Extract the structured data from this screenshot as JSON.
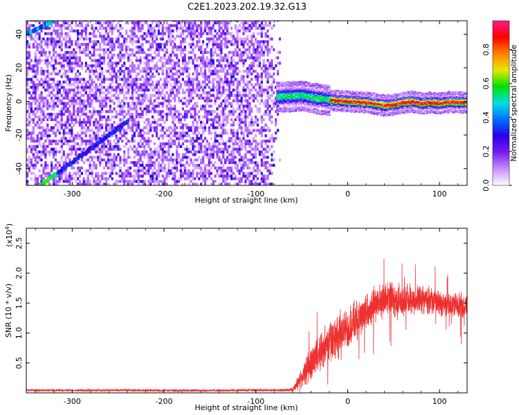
{
  "figure_title": "C2E1.2023.202.19.32.G13",
  "chart_data": [
    {
      "type": "heatmap",
      "xlabel": "Height of straight line (km)",
      "ylabel": "Frequency (Hz)",
      "xlim": [
        -350,
        130
      ],
      "ylim": [
        -50,
        48
      ],
      "xticks": [
        -300,
        -200,
        -100,
        0,
        100
      ],
      "yticks": [
        -40,
        -20,
        0,
        20,
        40
      ],
      "colorbar": {
        "label": "Normalized spectral amplitude",
        "range": [
          0,
          0.97
        ],
        "ticks": [
          0.0,
          0.2,
          0.4,
          0.6,
          0.8
        ],
        "tick_labels": [
          "0.0",
          "0.2",
          "0.4",
          "0.6",
          "0.8"
        ],
        "colormap": [
          "#ffffff",
          "#c890ff",
          "#7a1cf0",
          "#2800e8",
          "#0070ff",
          "#00e0e0",
          "#00e000",
          "#e8e800",
          "#ff8000",
          "#ff0000",
          "#ff1a8c"
        ]
      },
      "features": {
        "noise_region_x": [
          -350,
          -75
        ],
        "signal_ridge": {
          "x": [
            -78,
            -60,
            -50,
            -40,
            -30,
            -20,
            -10,
            0,
            10,
            20,
            30,
            40,
            50,
            60,
            70,
            80,
            90,
            100,
            110,
            120,
            130
          ],
          "y": [
            3.5,
            3.8,
            4.2,
            3.0,
            2.2,
            1.6,
            1.0,
            0.6,
            0.3,
            0.0,
            -0.8,
            -1.8,
            -1.2,
            0.0,
            0.5,
            -0.6,
            0.0,
            -0.5,
            0.4,
            0.0,
            0.0
          ]
        },
        "diagonal_trace": {
          "x": [
            -335,
            -240
          ],
          "y": [
            -50,
            -12
          ]
        },
        "corner_trace": {
          "x": [
            -350,
            -320
          ],
          "y": [
            40,
            48
          ]
        }
      },
      "grid": false
    },
    {
      "type": "line",
      "xlabel": "Height of straight line (km)",
      "ylabel": "SNR (10 * v/v)",
      "y_multiplier": "(x10",
      "y_multiplier_exp": "4",
      "y_multiplier_close": ")",
      "xlim": [
        -350,
        130
      ],
      "ylim": [
        0,
        27500
      ],
      "xticks": [
        -300,
        -200,
        -100,
        0,
        100
      ],
      "yticks": [
        5000,
        10000,
        15000,
        20000,
        25000
      ],
      "ytick_labels": [
        "0.5",
        "1.0",
        "1.5",
        "2.0",
        "2.5"
      ],
      "series": [
        {
          "color": "#ee3030",
          "x": [
            -350,
            -300,
            -250,
            -200,
            -150,
            -100,
            -70,
            -60,
            -50,
            -40,
            -30,
            -20,
            -10,
            0,
            10,
            20,
            30,
            40,
            50,
            60,
            70,
            80,
            90,
            100,
            110,
            120,
            130
          ],
          "y": [
            450,
            420,
            450,
            400,
            400,
            450,
            450,
            550,
            2500,
            5000,
            7000,
            8500,
            9500,
            10800,
            12000,
            13800,
            15000,
            15600,
            15400,
            15300,
            15500,
            15600,
            15500,
            15000,
            14800,
            14600,
            14600
          ],
          "noise_amp": [
            250,
            250,
            250,
            250,
            250,
            250,
            250,
            400,
            2000,
            3500,
            4000,
            4000,
            4000,
            4000,
            3800,
            3500,
            3500,
            3500,
            3500,
            3300,
            3000,
            2800,
            2600,
            2400,
            2400,
            2400,
            2400
          ]
        }
      ],
      "grid": false
    }
  ]
}
